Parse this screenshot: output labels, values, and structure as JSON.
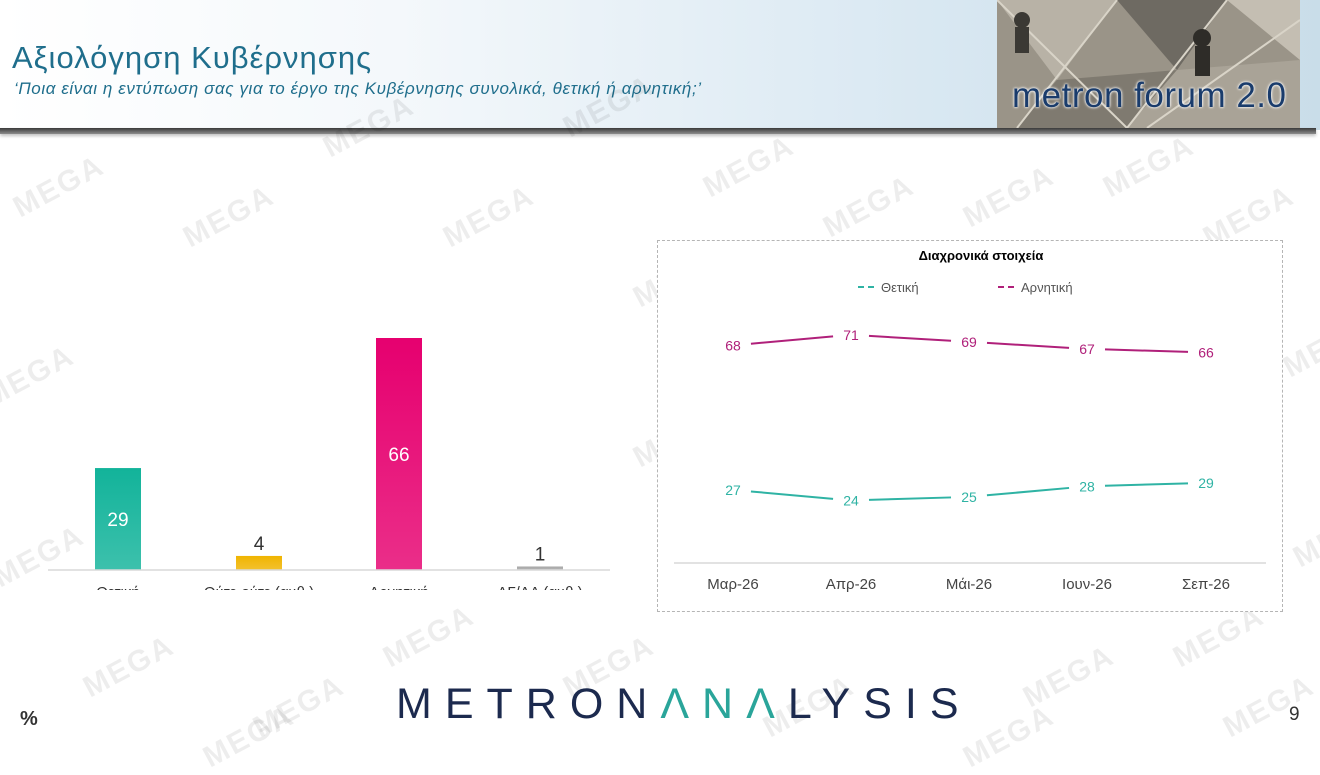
{
  "header": {
    "title": "Αξιολόγηση Κυβέρνησης",
    "subtitle": "‘Ποια είναι η εντύπωση σας για το έργο της Κυβέρνησης συνολικά, θετική ή αρνητική;’",
    "logo_text": "metron forum 2.0"
  },
  "watermark_text": "MEGA",
  "chart_data": [
    {
      "type": "bar",
      "categories": [
        "Θετική",
        "Ούτε-ούτε (αυθ.)",
        "Αρνητική",
        "ΔΓ/ΔΑ (αυθ.)"
      ],
      "values": [
        29,
        4,
        66,
        1
      ],
      "colors": [
        "#12b39a",
        "#f0b400",
        "#e6006f",
        "#a6a6a6"
      ],
      "ylim": [
        0,
        70
      ],
      "grid": false,
      "unit": "%"
    },
    {
      "type": "line",
      "title": "Διαχρονικά στοιχεία",
      "x": [
        "Μαρ-26",
        "Απρ-26",
        "Μάι-26",
        "Ιουν-26",
        "Σεπ-26"
      ],
      "series": [
        {
          "name": "Θετική",
          "values": [
            27,
            24,
            25,
            28,
            29
          ],
          "color": "#2fb3a4"
        },
        {
          "name": "Αρνητική",
          "values": [
            68,
            71,
            69,
            67,
            66
          ],
          "color": "#b0207a"
        }
      ],
      "ylim": [
        0,
        100
      ],
      "legend": "top",
      "grid": false
    }
  ],
  "footer": {
    "brand_part1": "METRON",
    "brand_part2": "ΛNΛ",
    "brand_part3": "LYSIS",
    "percent_label": "%",
    "page_number": "9"
  }
}
